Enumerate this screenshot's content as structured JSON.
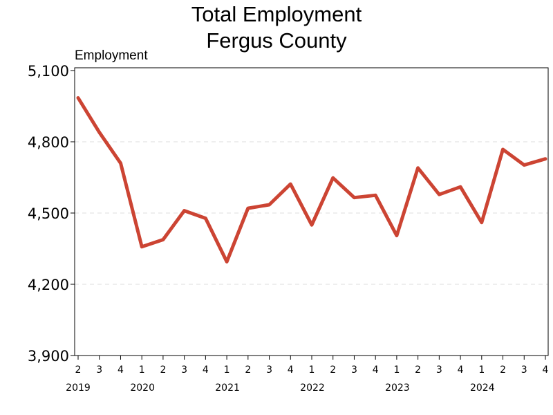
{
  "chart_data": {
    "type": "line",
    "title": "Total Employment",
    "subtitle": "Fergus County",
    "ylabel": "Employment",
    "xlabel": "",
    "ylim": [
      3900,
      5100
    ],
    "yticks": [
      3900,
      4200,
      4500,
      4800,
      5100
    ],
    "ytick_labels": [
      "3,900",
      "4,200",
      "4,500",
      "4,800",
      "5,100"
    ],
    "grid": "horizontal dashed",
    "x": [
      "2019 Q2",
      "2019 Q3",
      "2019 Q4",
      "2020 Q1",
      "2020 Q2",
      "2020 Q3",
      "2020 Q4",
      "2021 Q1",
      "2021 Q2",
      "2021 Q3",
      "2021 Q4",
      "2022 Q1",
      "2022 Q2",
      "2022 Q3",
      "2022 Q4",
      "2023 Q1",
      "2023 Q2",
      "2023 Q3",
      "2023 Q4",
      "2024 Q1",
      "2024 Q2",
      "2024 Q3",
      "2024 Q4"
    ],
    "quarter_labels": [
      "2",
      "3",
      "4",
      "1",
      "2",
      "3",
      "4",
      "1",
      "2",
      "3",
      "4",
      "1",
      "2",
      "3",
      "4",
      "1",
      "2",
      "3",
      "4",
      "1",
      "2",
      "3",
      "4"
    ],
    "year_labels": [
      {
        "label": "2019",
        "index": 0
      },
      {
        "label": "2020",
        "index": 3
      },
      {
        "label": "2021",
        "index": 7
      },
      {
        "label": "2022",
        "index": 11
      },
      {
        "label": "2023",
        "index": 15
      },
      {
        "label": "2024",
        "index": 19
      }
    ],
    "series": [
      {
        "values": [
          4985,
          4840,
          4710,
          4358,
          4388,
          4510,
          4478,
          4295,
          4520,
          4535,
          4622,
          4450,
          4648,
          4565,
          4575,
          4405,
          4690,
          4578,
          4610,
          4460,
          4768,
          4702,
          4728
        ],
        "color": "#CC4433"
      }
    ]
  }
}
